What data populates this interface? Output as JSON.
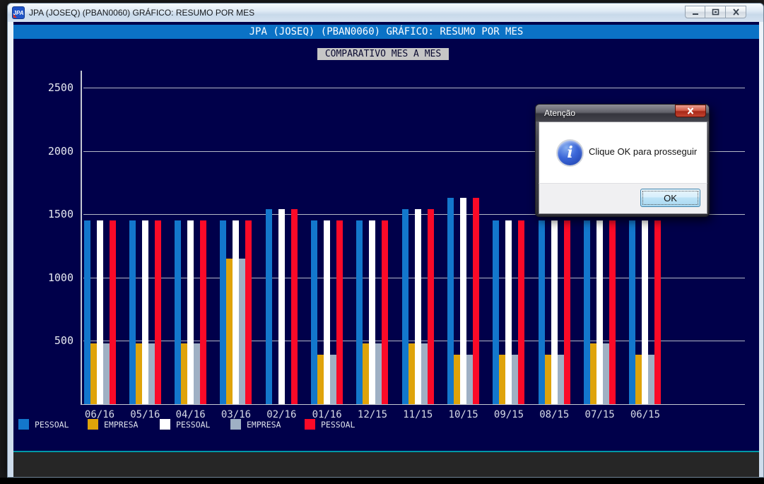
{
  "window": {
    "title": "JPA (JOSEQ) (PBAN0060) GRÁFICO: RESUMO POR MES",
    "icon_text": "JPA",
    "header_title": "JPA (JOSEQ) (PBAN0060) GRÁFICO: RESUMO POR MES"
  },
  "chart_data": {
    "type": "bar",
    "title": "COMPARATIVO MES A MES",
    "categories": [
      "06/16",
      "05/16",
      "04/16",
      "03/16",
      "02/16",
      "01/16",
      "12/15",
      "11/15",
      "10/15",
      "09/15",
      "08/15",
      "07/15",
      "06/15"
    ],
    "series": [
      {
        "name": "PESSOAL",
        "color": "#1377cc",
        "values": [
          1450,
          1450,
          1450,
          1450,
          1540,
          1450,
          1450,
          1540,
          1630,
          1450,
          1450,
          1450,
          1450
        ]
      },
      {
        "name": "EMPRESA",
        "color": "#dfa30a",
        "values": [
          480,
          480,
          480,
          1150,
          0,
          390,
          480,
          480,
          390,
          390,
          390,
          480,
          390
        ]
      },
      {
        "name": "PESSOAL",
        "color": "#ffffff",
        "values": [
          1450,
          1450,
          1450,
          1450,
          1540,
          1450,
          1450,
          1540,
          1630,
          1450,
          1450,
          1450,
          1450
        ]
      },
      {
        "name": "EMPRESA",
        "color": "#9fb0c4",
        "values": [
          480,
          480,
          480,
          1150,
          0,
          390,
          480,
          480,
          390,
          390,
          390,
          480,
          390
        ]
      },
      {
        "name": "PESSOAL",
        "color": "#fb0a28",
        "values": [
          1450,
          1450,
          1450,
          1450,
          1540,
          1450,
          1450,
          1540,
          1630,
          1450,
          1450,
          1450,
          1450
        ]
      }
    ],
    "ylim": [
      0,
      2500
    ],
    "yticks": [
      500,
      1000,
      1500,
      2000,
      2500
    ],
    "grid": true,
    "legend_position": "bottom-left",
    "xlabel": "",
    "ylabel": ""
  },
  "dialog": {
    "title": "Atenção",
    "message": "Clique OK para prosseguir",
    "ok_label": "OK"
  },
  "colors": {
    "header_bar": "#0b72c6",
    "chart_background": "#00004a",
    "separator_teal": "#0098a6"
  }
}
